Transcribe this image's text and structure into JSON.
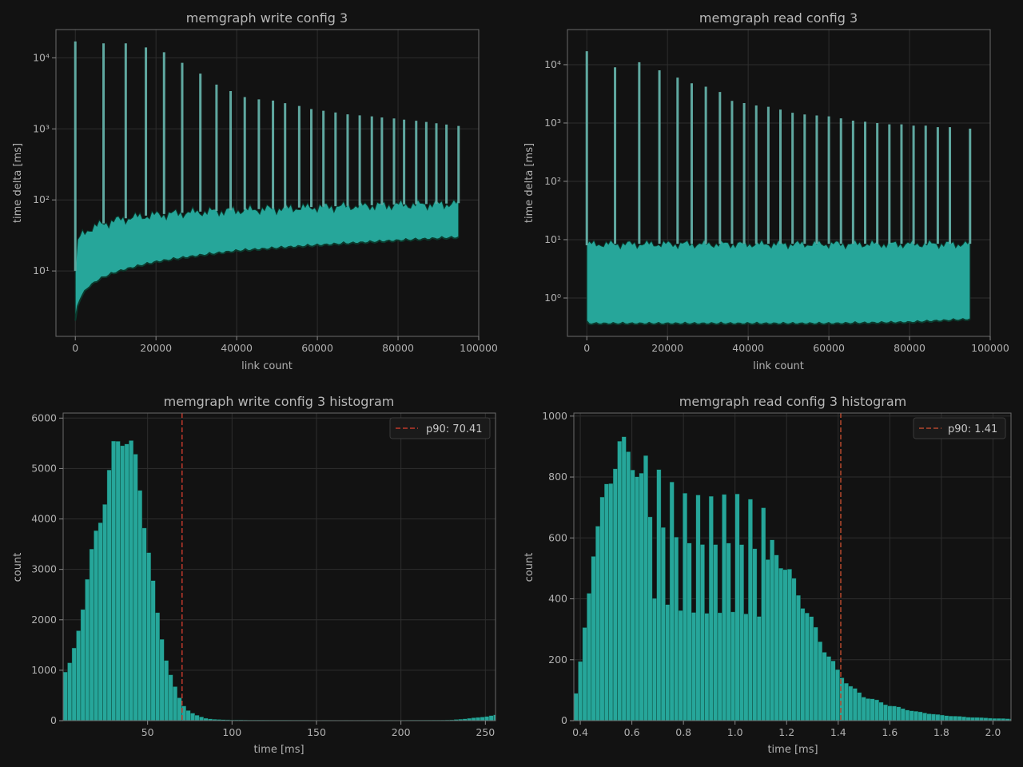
{
  "colors": {
    "background": "#121212",
    "series": "#26a69a",
    "series_edge": "#0b3b2e",
    "spike": "#5fa8a0",
    "p90_write": "#c0392b",
    "p90_read": "#b5482e",
    "text": "#b8b8b8",
    "grid": "#2e2e2e"
  },
  "chart_data": [
    {
      "id": "write",
      "type": "line",
      "title": "memgraph write config 3",
      "xlabel": "link count",
      "ylabel": "time delta [ms]",
      "yscale": "log",
      "xlim": [
        -4800,
        100000
      ],
      "ylim": [
        1.2,
        25000
      ],
      "grid": true,
      "xticks": [
        0,
        20000,
        40000,
        60000,
        80000,
        100000
      ],
      "xtick_labels": [
        "0",
        "20000",
        "40000",
        "60000",
        "80000",
        "100000"
      ],
      "yticks": [
        10,
        100,
        1000,
        10000
      ],
      "ytick_labels": [
        "10¹",
        "10²",
        "10³",
        "10⁴"
      ],
      "band": {
        "x": [
          0,
          200,
          1000,
          3000,
          6000,
          10000,
          15000,
          20000,
          30000,
          40000,
          50000,
          60000,
          70000,
          80000,
          90000,
          95000
        ],
        "low": [
          2,
          2.8,
          4,
          6,
          8,
          10,
          12,
          14,
          17,
          20,
          22,
          24,
          26,
          28,
          30,
          31
        ],
        "high": [
          10,
          20,
          30,
          38,
          45,
          52,
          58,
          62,
          68,
          72,
          76,
          80,
          83,
          86,
          88,
          90
        ]
      },
      "spikes": {
        "x": [
          0,
          7000,
          12500,
          17500,
          22000,
          26500,
          31000,
          35000,
          38500,
          42000,
          45500,
          49000,
          52000,
          55500,
          58500,
          61500,
          64500,
          67500,
          70500,
          73500,
          76000,
          79000,
          81500,
          84500,
          87000,
          89500,
          92000,
          95000
        ],
        "y": [
          17000,
          16000,
          16000,
          14000,
          12000,
          8500,
          6000,
          4200,
          3400,
          2800,
          2600,
          2500,
          2300,
          2100,
          1900,
          1800,
          1700,
          1600,
          1550,
          1500,
          1450,
          1400,
          1350,
          1300,
          1250,
          1200,
          1150,
          1100
        ]
      }
    },
    {
      "id": "read",
      "type": "line",
      "title": "memgraph read config 3",
      "xlabel": "link count",
      "ylabel": "time delta [ms]",
      "yscale": "log",
      "xlim": [
        -4800,
        100000
      ],
      "ylim": [
        0.22,
        40000
      ],
      "grid": true,
      "xticks": [
        0,
        20000,
        40000,
        60000,
        80000,
        100000
      ],
      "xtick_labels": [
        "0",
        "20000",
        "40000",
        "60000",
        "80000",
        "100000"
      ],
      "yticks": [
        1,
        10,
        100,
        1000,
        10000
      ],
      "ytick_labels": [
        "10⁰",
        "10¹",
        "10²",
        "10³",
        "10⁴"
      ],
      "band": {
        "x": [
          0,
          500,
          5000,
          20000,
          40000,
          60000,
          80000,
          95000
        ],
        "low": [
          0.4,
          0.38,
          0.38,
          0.38,
          0.38,
          0.38,
          0.4,
          0.45
        ],
        "high": [
          8,
          8.5,
          8.5,
          8.5,
          8.5,
          8.5,
          8.5,
          8.5
        ]
      },
      "spikes": {
        "x": [
          0,
          7000,
          13000,
          18000,
          22500,
          26000,
          29500,
          33000,
          36000,
          39000,
          42000,
          45000,
          48000,
          51000,
          54000,
          57000,
          60000,
          63000,
          66000,
          69000,
          72000,
          75000,
          78000,
          81000,
          84000,
          87000,
          90000,
          95000
        ],
        "y": [
          17000,
          9000,
          11000,
          8000,
          6000,
          4800,
          4200,
          3400,
          2400,
          2200,
          2000,
          1900,
          1700,
          1500,
          1400,
          1350,
          1300,
          1200,
          1100,
          1050,
          1000,
          950,
          950,
          900,
          900,
          850,
          850,
          800
        ]
      }
    },
    {
      "id": "write_hist",
      "type": "bar",
      "title": "memgraph write config 3 histogram",
      "xlabel": "time [ms]",
      "ylabel": "count",
      "xlim": [
        0,
        256
      ],
      "ylim": [
        0,
        6100
      ],
      "grid": true,
      "xticks": [
        50,
        100,
        150,
        200,
        250
      ],
      "yticks": [
        0,
        1000,
        2000,
        3000,
        4000,
        5000,
        6000
      ],
      "bin_width": 2.6,
      "bins": {
        "x": [
          0,
          5,
          10,
          15,
          20,
          25,
          30,
          35,
          38,
          42,
          45,
          50,
          55,
          60,
          65,
          70,
          75,
          80,
          85,
          90,
          100,
          150,
          200,
          230,
          245,
          256
        ],
        "y": [
          900,
          1150,
          2000,
          2900,
          3800,
          4500,
          5300,
          5720,
          5650,
          5200,
          4700,
          3600,
          2200,
          1400,
          750,
          350,
          180,
          90,
          45,
          25,
          15,
          8,
          8,
          15,
          60,
          110
        ]
      },
      "p90": 70.41,
      "legend": {
        "label": "p90: 70.41",
        "loc": "upper right"
      }
    },
    {
      "id": "read_hist",
      "type": "bar",
      "title": "memgraph read config 3 histogram",
      "xlabel": "time [ms]",
      "ylabel": "count",
      "xlim": [
        0.375,
        2.07
      ],
      "ylim": [
        0,
        1010
      ],
      "grid": true,
      "xticks": [
        0.4,
        0.6,
        0.8,
        1.0,
        1.2,
        1.4,
        1.6,
        1.8,
        2.0
      ],
      "xtick_labels": [
        "0.4",
        "0.6",
        "0.8",
        "1.0",
        "1.2",
        "1.4",
        "1.6",
        "1.8",
        "2.0"
      ],
      "yticks": [
        0,
        200,
        400,
        600,
        800,
        1000
      ],
      "bin_width": 0.0169,
      "bins": {
        "x": [
          0.38,
          0.41,
          0.45,
          0.5,
          0.55,
          0.6,
          0.65,
          0.7,
          0.8,
          0.9,
          1.0,
          1.1,
          1.2,
          1.3,
          1.35,
          1.4,
          1.45,
          1.5,
          1.6,
          1.7,
          1.8,
          1.9,
          2.0,
          2.07
        ],
        "y": [
          70,
          240,
          560,
          760,
          900,
          870,
          760,
          720,
          650,
          640,
          650,
          620,
          500,
          320,
          230,
          160,
          110,
          80,
          50,
          30,
          18,
          12,
          8,
          6
        ]
      },
      "mid": [
        0.64,
        1.12
      ],
      "p90": 1.41,
      "legend": {
        "label": "p90: 1.41",
        "loc": "upper right"
      }
    }
  ]
}
